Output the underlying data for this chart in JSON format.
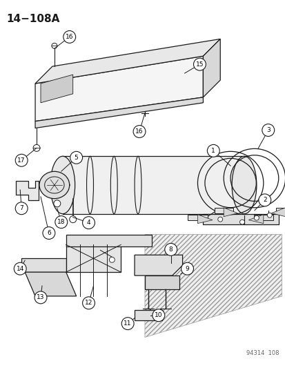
{
  "title": "14−108A",
  "background_color": "#ffffff",
  "line_color": "#1a1a1a",
  "figsize": [
    4.14,
    5.33
  ],
  "dpi": 100,
  "watermark": "94314  108"
}
